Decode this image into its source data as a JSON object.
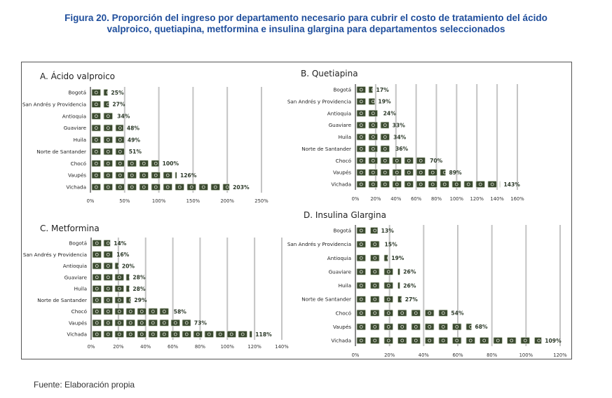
{
  "title_lines": [
    "Figura 20. Proporción del ingreso por departamento necesario para cubrir el costo de tratamiento del ácido",
    "valproico, quetiapina, metformina e insulina glargina para departamentos seleccionados"
  ],
  "source": "Fuente: Elaboración propia",
  "colors": {
    "title": "#1f4e9c",
    "icon_fill": "#3b4a30",
    "icon_border": "#c8d0bf",
    "grid": "#c4c4c4"
  },
  "icon": "banknote-icon",
  "chart_data": [
    {
      "type": "bar",
      "orientation": "horizontal",
      "style": "pictogram",
      "title": "A. Ácido valproico",
      "categories": [
        "Bogotá",
        "San Andrés y Providencia",
        "Antioquia",
        "Guaviare",
        "Huila",
        "Norte de Santander",
        "Chocó",
        "Vaupés",
        "Vichada"
      ],
      "values": [
        25,
        27,
        34,
        48,
        49,
        51,
        100,
        126,
        203
      ],
      "value_labels": [
        "25%",
        "27%",
        "34%",
        "48%",
        "49%",
        "51%",
        "100%",
        "126%",
        "203%"
      ],
      "xlim": [
        0,
        250
      ],
      "ticks": [
        "0%",
        "50%",
        "100%",
        "150%",
        "200%",
        "250%"
      ],
      "grid": true
    },
    {
      "type": "bar",
      "orientation": "horizontal",
      "style": "pictogram",
      "title": "B. Quetiapina",
      "categories": [
        "Bogotá",
        "San Andrés y Providencia",
        "Antioquia",
        "Guaviare",
        "Huila",
        "Norte de Santander",
        "Chocó",
        "Vaupés",
        "Vichada"
      ],
      "values": [
        17,
        19,
        24,
        33,
        34,
        36,
        70,
        89,
        143
      ],
      "value_labels": [
        "17%",
        "19%",
        "24%",
        "33%",
        "34%",
        "36%",
        "70%",
        "89%",
        "143%"
      ],
      "xlim": [
        0,
        160
      ],
      "ticks": [
        "0%",
        "20%",
        "40%",
        "60%",
        "80%",
        "100%",
        "120%",
        "140%",
        "160%"
      ],
      "grid": true
    },
    {
      "type": "bar",
      "orientation": "horizontal",
      "style": "pictogram",
      "title": "C. Metformina",
      "categories": [
        "Bogotá",
        "San Andrés y Providencia",
        "Antioquia",
        "Guaviare",
        "Huila",
        "Norte de Santander",
        "Chocó",
        "Vaupés",
        "Vichada"
      ],
      "values": [
        14,
        16,
        20,
        28,
        28,
        29,
        58,
        73,
        118
      ],
      "value_labels": [
        "14%",
        "16%",
        "20%",
        "28%",
        "28%",
        "29%",
        "58%",
        "73%",
        "118%"
      ],
      "xlim": [
        0,
        140
      ],
      "ticks": [
        "0%",
        "20%",
        "40%",
        "60%",
        "80%",
        "100%",
        "120%",
        "140%"
      ],
      "grid": true
    },
    {
      "type": "bar",
      "orientation": "horizontal",
      "style": "pictogram",
      "title": "D. Insulina Glargina",
      "categories": [
        "Bogotá",
        "San Andrés y Providencia",
        "Antioquia",
        "Guaviare",
        "Huila",
        "Norte de Santander",
        "Chocó",
        "Vaupés",
        "Vichada"
      ],
      "values": [
        13,
        15,
        19,
        26,
        26,
        27,
        54,
        68,
        109
      ],
      "value_labels": [
        "13%",
        "15%",
        "19%",
        "26%",
        "26%",
        "27%",
        "54%",
        "68%",
        "109%"
      ],
      "xlim": [
        0,
        120
      ],
      "ticks": [
        "0%",
        "20%",
        "40%",
        "60%",
        "80%",
        "100%",
        "120%"
      ],
      "grid": true
    }
  ]
}
